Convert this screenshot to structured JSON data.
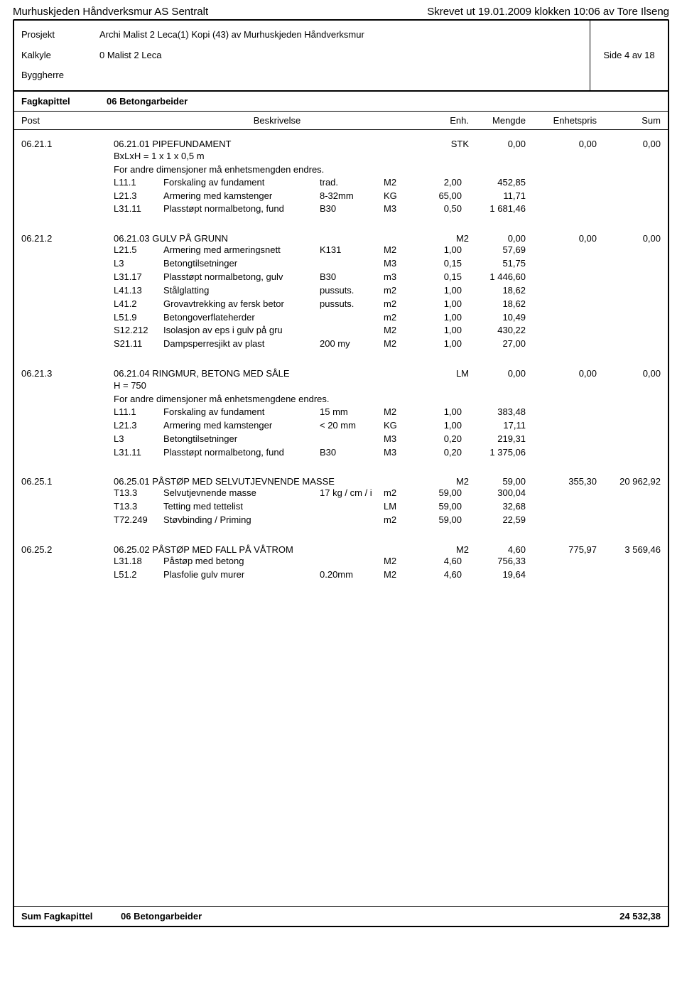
{
  "header": {
    "company": "Murhuskjeden Håndverksmur AS Sentralt",
    "printed": "Skrevet ut 19.01.2009 klokken 10:06 av Tore Ilseng"
  },
  "info": {
    "prosjekt_label": "Prosjekt",
    "prosjekt_value": "Archi Malist 2 Leca(1) Kopi (43) av Murhuskjeden Håndverksmur",
    "kalkyle_label": "Kalkyle",
    "kalkyle_value": "0 Malist 2 Leca",
    "byggherre_label": "Byggherre",
    "side": "Side 4 av 18"
  },
  "fagkapittel": {
    "label": "Fagkapittel",
    "value": "06 Betongarbeider"
  },
  "columns": {
    "post": "Post",
    "beskrivelse": "Beskrivelse",
    "enh": "Enh.",
    "mengde": "Mengde",
    "enhetspris": "Enhetspris",
    "sum": "Sum"
  },
  "posts": [
    {
      "id": "06.21.1",
      "title": "06.21.01 PIPEFUNDAMENT",
      "enh": "STK",
      "mengde": "0,00",
      "pris": "0,00",
      "sum": "0,00",
      "notes": [
        "BxLxH = 1 x 1 x 0,5 m",
        "For andre dimensjoner må enhetsmengden endres."
      ],
      "subs": [
        {
          "c": "L11.1",
          "d": "Forskaling av fundament",
          "sp": "trad.",
          "e": "M2",
          "m": "2,00",
          "p": "452,85"
        },
        {
          "c": "L21.3",
          "d": "Armering med kamstenger",
          "sp": "8-32mm",
          "e": "KG",
          "m": "65,00",
          "p": "11,71"
        },
        {
          "c": "L31.11",
          "d": "Plasstøpt normalbetong, fund",
          "sp": "B30",
          "e": "M3",
          "m": "0,50",
          "p": "1 681,46"
        }
      ]
    },
    {
      "id": "06.21.2",
      "title": "06.21.03 GULV PÅ GRUNN",
      "enh": "M2",
      "mengde": "0,00",
      "pris": "0,00",
      "sum": "0,00",
      "notes": [],
      "subs": [
        {
          "c": "L21.5",
          "d": "Armering med armeringsnett",
          "sp": "K131",
          "e": "M2",
          "m": "1,00",
          "p": "57,69"
        },
        {
          "c": "L3",
          "d": "Betongtilsetninger",
          "sp": "",
          "e": "M3",
          "m": "0,15",
          "p": "51,75"
        },
        {
          "c": "L31.17",
          "d": "Plasstøpt normalbetong, gulv",
          "sp": "B30",
          "e": "m3",
          "m": "0,15",
          "p": "1 446,60"
        },
        {
          "c": "L41.13",
          "d": "Stålglatting",
          "sp": "pussuts.",
          "e": "m2",
          "m": "1,00",
          "p": "18,62"
        },
        {
          "c": "L41.2",
          "d": "Grovavtrekking av fersk betor",
          "sp": "pussuts.",
          "e": "m2",
          "m": "1,00",
          "p": "18,62"
        },
        {
          "c": "L51.9",
          "d": "Betongoverflateherder",
          "sp": "",
          "e": "m2",
          "m": "1,00",
          "p": "10,49"
        },
        {
          "c": "S12.212",
          "d": "Isolasjon av eps i gulv på gru",
          "sp": "",
          "e": "M2",
          "m": "1,00",
          "p": "430,22"
        },
        {
          "c": "S21.11",
          "d": "Dampsperresjikt av plast",
          "sp": "200 my",
          "e": "M2",
          "m": "1,00",
          "p": "27,00"
        }
      ]
    },
    {
      "id": "06.21.3",
      "title": "06.21.04 RINGMUR, BETONG MED SÅLE",
      "enh": "LM",
      "mengde": "0,00",
      "pris": "0,00",
      "sum": "0,00",
      "notes": [
        "H = 750",
        "For andre dimensjoner må enhetsmengdene endres."
      ],
      "subs": [
        {
          "c": "L11.1",
          "d": "Forskaling av fundament",
          "sp": "15 mm",
          "e": "M2",
          "m": "1,00",
          "p": "383,48"
        },
        {
          "c": "L21.3",
          "d": "Armering med kamstenger",
          "sp": "< 20 mm",
          "e": "KG",
          "m": "1,00",
          "p": "17,11"
        },
        {
          "c": "L3",
          "d": "Betongtilsetninger",
          "sp": "",
          "e": "M3",
          "m": "0,20",
          "p": "219,31"
        },
        {
          "c": "L31.11",
          "d": "Plasstøpt normalbetong, fund",
          "sp": "B30",
          "e": "M3",
          "m": "0,20",
          "p": "1 375,06"
        }
      ]
    },
    {
      "id": "06.25.1",
      "title": "06.25.01 PÅSTØP MED SELVUTJEVNENDE MASSE",
      "enh": "M2",
      "mengde": "59,00",
      "pris": "355,30",
      "sum": "20 962,92",
      "notes": [],
      "subs": [
        {
          "c": "T13.3",
          "d": "Selvutjevnende masse",
          "sp": "17 kg / cm / i",
          "e": "m2",
          "m": "59,00",
          "p": "300,04"
        },
        {
          "c": "T13.3",
          "d": "Tetting med tettelist",
          "sp": "",
          "e": "LM",
          "m": "59,00",
          "p": "32,68"
        },
        {
          "c": "T72.249",
          "d": "Støvbinding / Priming",
          "sp": "",
          "e": "m2",
          "m": "59,00",
          "p": "22,59"
        }
      ]
    },
    {
      "id": "06.25.2",
      "title": "06.25.02 PÅSTØP MED FALL PÅ VÅTROM",
      "enh": "M2",
      "mengde": "4,60",
      "pris": "775,97",
      "sum": "3 569,46",
      "notes": [],
      "subs": [
        {
          "c": "L31.18",
          "d": "Påstøp med betong",
          "sp": "",
          "e": "M2",
          "m": "4,60",
          "p": "756,33"
        },
        {
          "c": "L51.2",
          "d": "Plasfolie gulv murer",
          "sp": "0.20mm",
          "e": "M2",
          "m": "4,60",
          "p": "19,64"
        }
      ]
    }
  ],
  "footer": {
    "label": "Sum Fagkapittel",
    "title": "06 Betongarbeider",
    "sum": "24 532,38"
  }
}
